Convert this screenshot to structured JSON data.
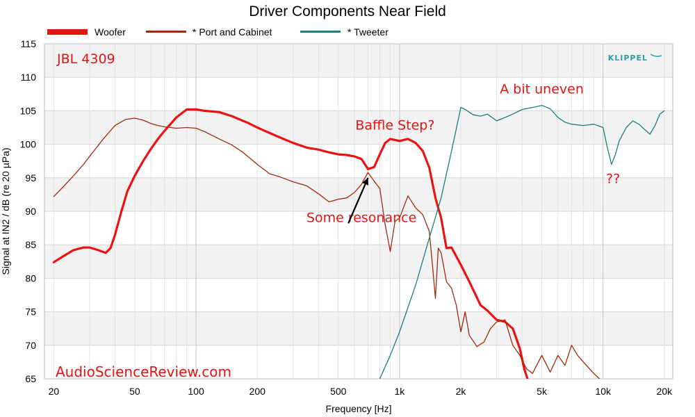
{
  "chart_data": {
    "type": "line",
    "title": "Driver Components Near Field",
    "xlabel": "Frequency [Hz]",
    "ylabel": "Signal at IN2 / dB (re 20 µPa)",
    "xscale": "log",
    "xlim": [
      18,
      22000
    ],
    "ylim": [
      65,
      115
    ],
    "xticks": [
      {
        "value": 20,
        "label": "20"
      },
      {
        "value": 50,
        "label": "50"
      },
      {
        "value": 100,
        "label": "100"
      },
      {
        "value": 200,
        "label": "200"
      },
      {
        "value": 500,
        "label": "500"
      },
      {
        "value": 1000,
        "label": "1k"
      },
      {
        "value": 2000,
        "label": "2k"
      },
      {
        "value": 5000,
        "label": "5k"
      },
      {
        "value": 10000,
        "label": "10k"
      },
      {
        "value": 20000,
        "label": "20k"
      }
    ],
    "yticks": [
      65,
      70,
      75,
      80,
      85,
      90,
      95,
      100,
      105,
      110,
      115
    ],
    "grid": true,
    "legend_position": "top",
    "series": [
      {
        "name": "Woofer",
        "color": "#ee1111",
        "style": "thick",
        "x": [
          20,
          22,
          25,
          28,
          30,
          33,
          36,
          38,
          40,
          43,
          46,
          50,
          55,
          60,
          65,
          70,
          80,
          90,
          100,
          110,
          130,
          150,
          180,
          200,
          250,
          300,
          350,
          400,
          450,
          500,
          550,
          600,
          650,
          700,
          750,
          800,
          850,
          900,
          1000,
          1100,
          1200,
          1300,
          1400,
          1500,
          1600,
          1700,
          1800,
          2000,
          2200,
          2500,
          2700,
          3000,
          3300,
          3600,
          3900,
          4100,
          4300
        ],
        "y": [
          82.4,
          83.2,
          84.2,
          84.6,
          84.6,
          84.2,
          83.8,
          84.5,
          86.5,
          90.0,
          93.0,
          95.3,
          97.5,
          99.3,
          100.8,
          102.0,
          104.0,
          105.2,
          105.2,
          105.0,
          104.8,
          104.2,
          103.2,
          102.5,
          101.2,
          100.2,
          99.5,
          99.2,
          98.8,
          98.5,
          98.4,
          98.2,
          97.8,
          96.3,
          96.6,
          98.5,
          100.2,
          100.8,
          100.5,
          100.8,
          100.2,
          99.0,
          96.5,
          92.0,
          89.0,
          84.5,
          84.6,
          82.0,
          79.5,
          76.0,
          75.2,
          73.8,
          73.5,
          72.5,
          69.5,
          66.5,
          64.5
        ]
      },
      {
        "name": "* Port and Cabinet",
        "color": "#a0290a",
        "style": "thin",
        "x": [
          20,
          22,
          25,
          28,
          30,
          35,
          40,
          45,
          50,
          55,
          60,
          65,
          70,
          80,
          90,
          100,
          110,
          130,
          150,
          170,
          200,
          230,
          260,
          300,
          350,
          400,
          450,
          500,
          550,
          600,
          650,
          700,
          750,
          800,
          850,
          900,
          950,
          1000,
          1100,
          1200,
          1300,
          1400,
          1450,
          1500,
          1550,
          1600,
          1700,
          1800,
          1900,
          2000,
          2100,
          2200,
          2400,
          2600,
          2800,
          3000,
          3300,
          3600,
          3900,
          4200,
          4500,
          5000,
          5500,
          6000,
          6500,
          7000,
          7500,
          8000,
          9000,
          10000
        ],
        "y": [
          92.2,
          93.5,
          95.3,
          97.0,
          98.2,
          100.8,
          102.8,
          103.7,
          103.9,
          103.6,
          103.1,
          102.8,
          102.6,
          102.4,
          102.5,
          102.4,
          101.9,
          100.8,
          99.9,
          98.8,
          97.0,
          95.6,
          95.1,
          94.4,
          93.8,
          92.6,
          91.4,
          91.8,
          92.0,
          92.8,
          94.0,
          95.8,
          94.5,
          93.4,
          88.0,
          84.0,
          88.5,
          89.0,
          92.3,
          90.5,
          89.5,
          87.0,
          82.0,
          77.0,
          84.5,
          83.8,
          79.5,
          78.5,
          76.0,
          72.0,
          75.0,
          71.5,
          69.8,
          70.5,
          72.5,
          73.5,
          73.8,
          70.0,
          68.5,
          66.5,
          65.8,
          68.5,
          66.0,
          68.5,
          67.0,
          70.0,
          68.5,
          67.5,
          65.8,
          64.5
        ]
      },
      {
        "name": "* Tweeter",
        "color": "#1a7e7a",
        "style": "thin",
        "x": [
          800,
          900,
          1000,
          1200,
          1400,
          1600,
          1800,
          2000,
          2100,
          2300,
          2500,
          2700,
          3000,
          3300,
          3600,
          4000,
          4500,
          5000,
          5500,
          6000,
          6500,
          7000,
          8000,
          9000,
          10000,
          10500,
          11000,
          11500,
          12000,
          13000,
          14000,
          15000,
          16000,
          17000,
          18000,
          19000,
          20000
        ],
        "y": [
          65.0,
          68.5,
          72.0,
          79.0,
          86.0,
          92.0,
          99.0,
          105.5,
          105.2,
          104.4,
          104.2,
          104.5,
          103.5,
          104.0,
          104.5,
          105.2,
          105.5,
          105.8,
          105.3,
          104.0,
          103.3,
          103.0,
          102.8,
          103.0,
          102.5,
          99.5,
          97.0,
          98.5,
          100.5,
          102.5,
          103.5,
          103.0,
          102.2,
          101.5,
          102.8,
          104.5,
          105.0
        ]
      }
    ],
    "annotations": [
      {
        "text": "JBL 4309",
        "anchor": "top-left"
      },
      {
        "text": "A bit uneven",
        "x": 5000,
        "y": 107.6
      },
      {
        "text": "Baffle Step?",
        "x": 950,
        "y": 102.2
      },
      {
        "text": "??",
        "x": 11200,
        "y": 94.2
      },
      {
        "text": "Some resonance",
        "x": 650,
        "y": 88.4
      }
    ],
    "arrow": {
      "from_x": 560,
      "from_y": 88.2,
      "to_x": 700,
      "to_y": 95.0
    }
  },
  "branding": {
    "logo": "KLIPPEL",
    "watermark": "AudioScienceReview.com"
  },
  "colors": {
    "plot_band": "#f2f2f2",
    "grid": "#d6d6d6",
    "annotation": "#e21414"
  }
}
